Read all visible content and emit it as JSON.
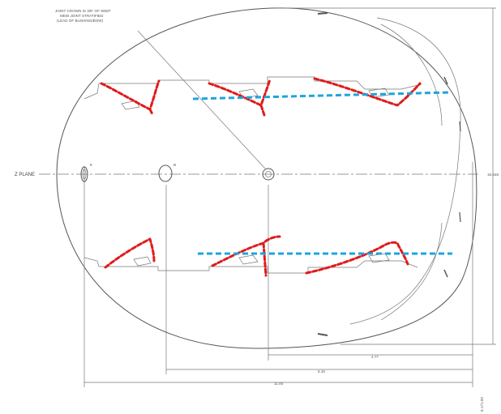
{
  "drawing": {
    "note_lines": [
      "JOINT CROWN IS 3/8\" OF SEEP",
      "MEW JOINT STRATIFIED",
      "(LEAD OF BUSHING/BOW)"
    ],
    "centerline_label": "Z PLANE",
    "hole_labels": [
      "8",
      "B"
    ],
    "dimensions": {
      "bottom_short": "4.77",
      "bottom_mid": "5.10",
      "bottom_total": "11.46",
      "right_vertical": "15.648",
      "right_corner": "8.171.00"
    }
  },
  "colors": {
    "outline": "#555555",
    "bead_red": "#e01b1b",
    "bead_blue": "#1fa4dc"
  }
}
